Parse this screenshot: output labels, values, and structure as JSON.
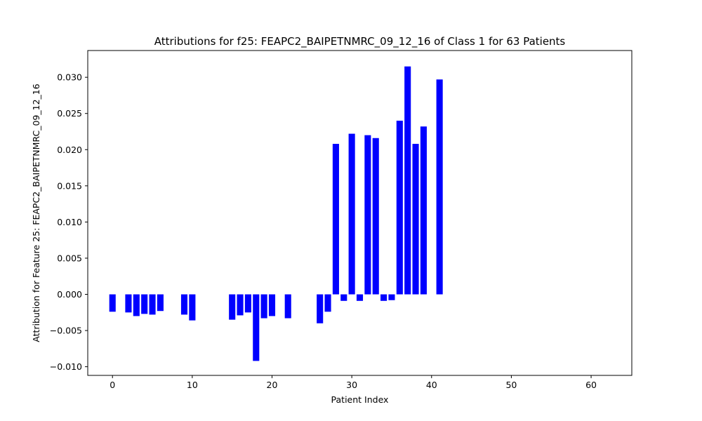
{
  "chart_data": {
    "type": "bar",
    "title": "Attributions for f25: FEAPC2_BAIPETNMRC_09_12_16 of Class 1 for 63 Patients",
    "xlabel": "Patient Index",
    "ylabel": "Attribution for Feature 25: FEAPC2_BAIPETNMRC_09_12_16",
    "xlim": [
      -3.1,
      65.1
    ],
    "ylim": [
      -0.0112,
      0.0337
    ],
    "x_ticks": [
      0,
      10,
      20,
      30,
      40,
      50,
      60
    ],
    "y_ticks": [
      -0.01,
      -0.005,
      0.0,
      0.005,
      0.01,
      0.015,
      0.02,
      0.025,
      0.03
    ],
    "y_tick_labels": [
      "−0.010",
      "−0.005",
      "0.000",
      "0.005",
      "0.010",
      "0.015",
      "0.020",
      "0.025",
      "0.030"
    ],
    "bar_color": "#0000ff",
    "grid": false,
    "x": [
      0,
      2,
      3,
      4,
      5,
      6,
      9,
      10,
      15,
      16,
      17,
      18,
      19,
      20,
      22,
      26,
      27,
      28,
      29,
      30,
      31,
      32,
      33,
      34,
      35,
      36,
      37,
      38,
      39,
      41
    ],
    "values": [
      -0.0024,
      -0.0025,
      -0.003,
      -0.0027,
      -0.0028,
      -0.0023,
      -0.0028,
      -0.0036,
      -0.0035,
      -0.0029,
      -0.0025,
      -0.0092,
      -0.0033,
      -0.003,
      -0.0033,
      -0.004,
      -0.0024,
      0.0208,
      -0.0009,
      0.0222,
      -0.0009,
      0.022,
      0.0216,
      -0.0009,
      -0.0008,
      0.024,
      0.0315,
      0.0208,
      0.0232,
      0.0297
    ]
  }
}
